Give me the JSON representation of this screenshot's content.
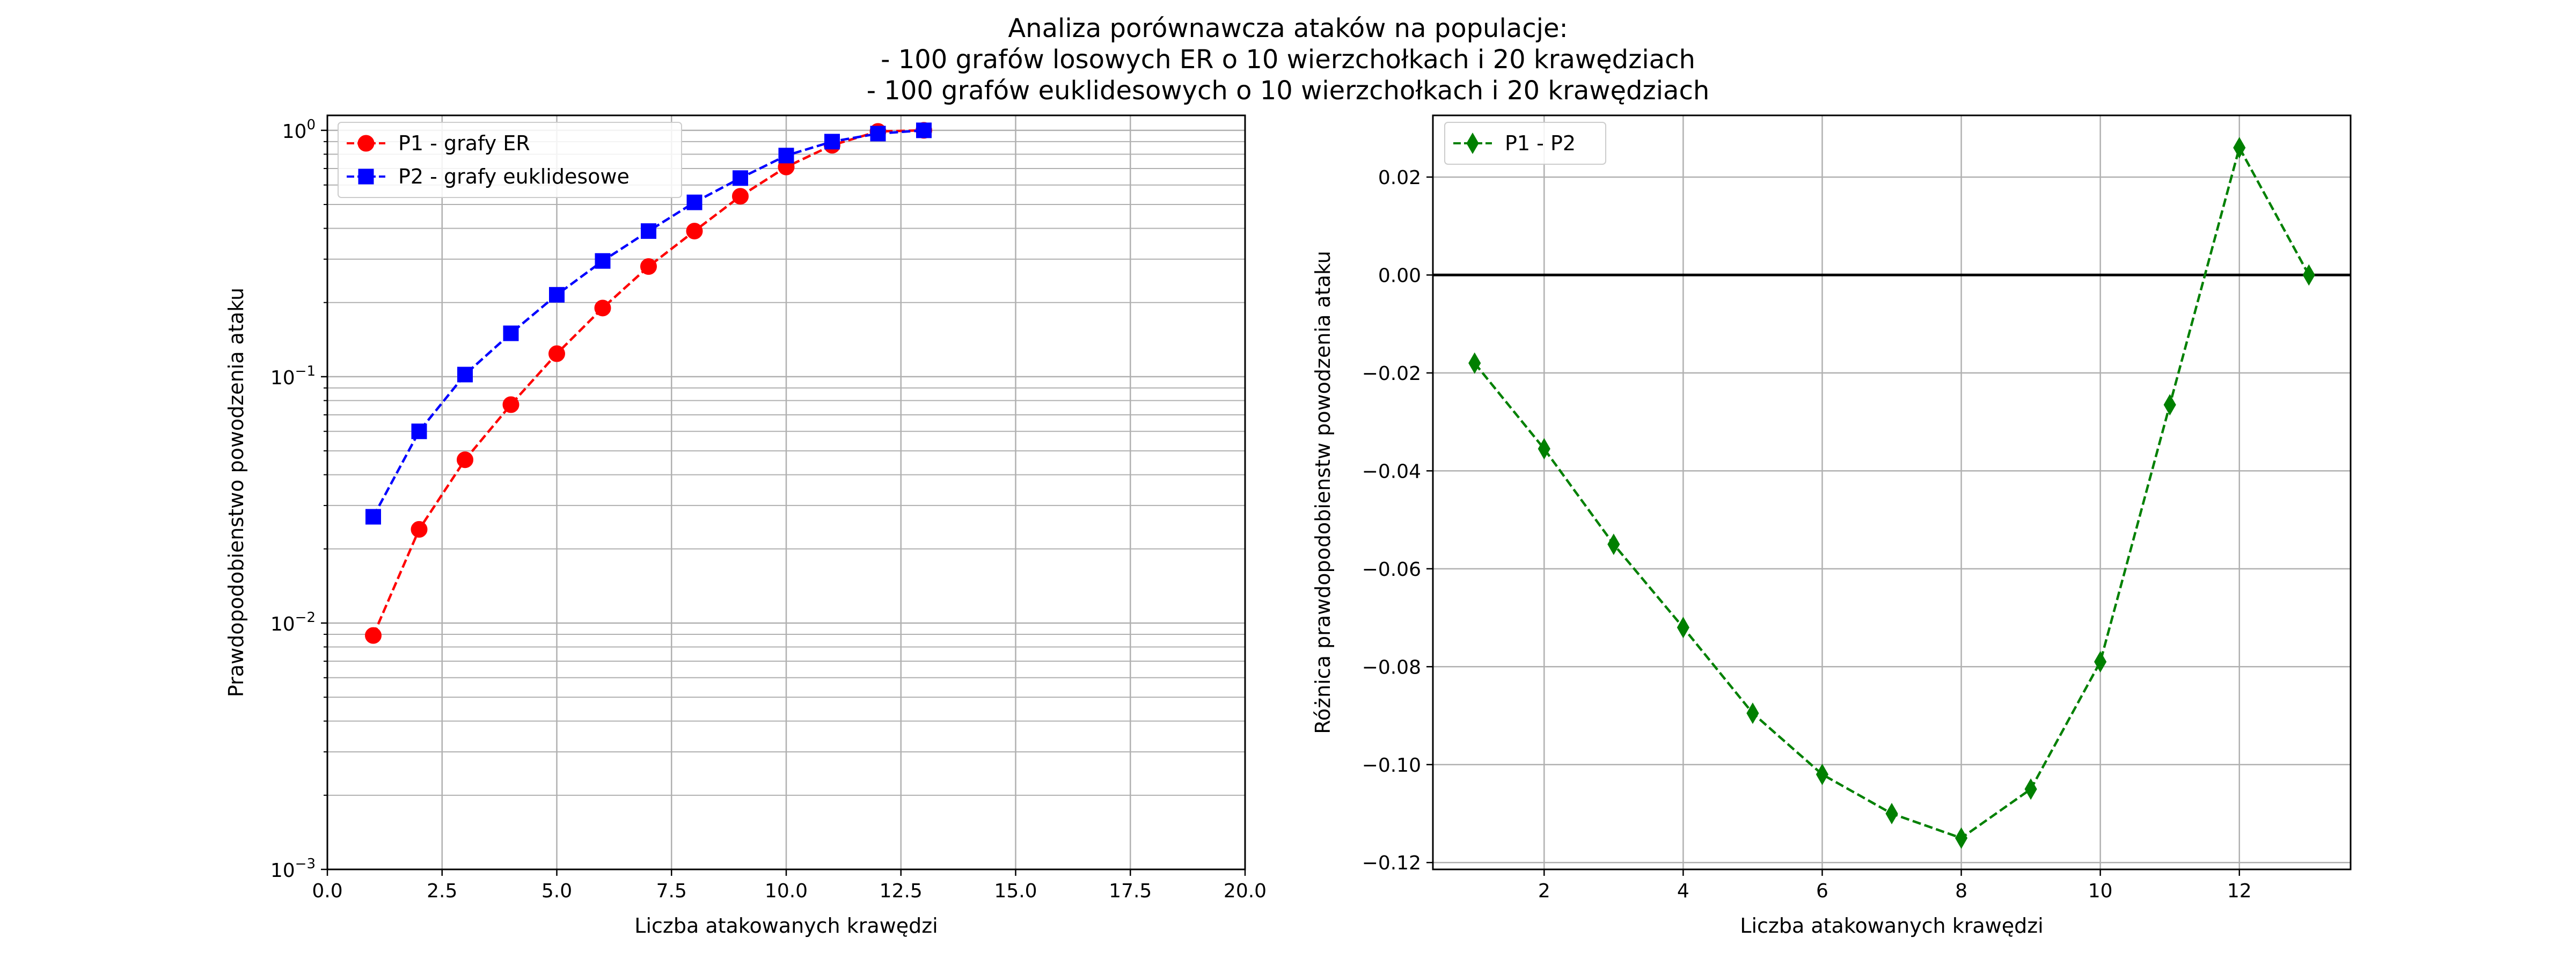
{
  "figure": {
    "title_lines": [
      "Analiza porównawcza ataków na populacje:",
      "- 100 grafów losowych ER o 10 wierzchołkach i 20 krawędziach",
      "- 100 grafów euklidesowych o 10 wierzchołkach i 20 krawędziach"
    ]
  },
  "chart_data": [
    {
      "type": "line",
      "xlabel": "Liczba atakowanych krawędzi",
      "ylabel": "Prawdopodobienstwo powodzenia ataku",
      "xlim": [
        0,
        20
      ],
      "ylim": [
        0.001,
        1.15
      ],
      "yscale": "log",
      "grid": "on (major and minor)",
      "legend": "top-left",
      "x_ticks": [
        "0.0",
        "2.5",
        "5.0",
        "7.5",
        "10.0",
        "12.5",
        "15.0",
        "17.5",
        "20.0"
      ],
      "y_ticks": [
        {
          "base": "10",
          "exp": "0"
        },
        {
          "base": "10",
          "exp": "−1"
        },
        {
          "base": "10",
          "exp": "−2"
        },
        {
          "base": "10",
          "exp": "−3"
        }
      ],
      "series": [
        {
          "name": "P1 - grafy ER",
          "color": "#ff0000",
          "marker": "circle",
          "line": "dashed",
          "x": [
            1,
            2,
            3,
            4,
            5,
            6,
            7,
            8,
            9,
            10,
            11,
            12,
            13
          ],
          "values": [
            0.0089,
            0.024,
            0.046,
            0.077,
            0.124,
            0.19,
            0.28,
            0.39,
            0.54,
            0.71,
            0.87,
            0.99,
            1.0
          ]
        },
        {
          "name": "P2 - grafy euklidesowe",
          "color": "#0000ff",
          "marker": "square",
          "line": "dashed",
          "x": [
            1,
            2,
            3,
            4,
            5,
            6,
            7,
            8,
            9,
            10,
            11,
            12,
            13
          ],
          "values": [
            0.027,
            0.06,
            0.102,
            0.15,
            0.215,
            0.295,
            0.39,
            0.51,
            0.64,
            0.79,
            0.9,
            0.97,
            1.0
          ]
        }
      ]
    },
    {
      "type": "line",
      "xlabel": "Liczba atakowanych krawędzi",
      "ylabel": "Różnica prawdopodobienstw powodzenia ataku",
      "xlim": [
        0.4,
        13.6
      ],
      "ylim": [
        -0.1214,
        0.0326
      ],
      "grid": "on",
      "legend": "top-left",
      "reference_line_y": 0,
      "x_ticks": [
        "2",
        "4",
        "6",
        "8",
        "10",
        "12"
      ],
      "y_ticks": [
        "0.02",
        "0.00",
        "−0.02",
        "−0.04",
        "−0.06",
        "−0.08",
        "−0.10",
        "−0.12"
      ],
      "series": [
        {
          "name": "P1 - P2",
          "color": "#008000",
          "marker": "diamond",
          "line": "dashed",
          "x": [
            1,
            2,
            3,
            4,
            5,
            6,
            7,
            8,
            9,
            10,
            11,
            12,
            13
          ],
          "values": [
            -0.018,
            -0.0355,
            -0.055,
            -0.072,
            -0.0895,
            -0.102,
            -0.11,
            -0.115,
            -0.105,
            -0.079,
            -0.0265,
            0.026,
            0.0
          ]
        }
      ]
    }
  ]
}
